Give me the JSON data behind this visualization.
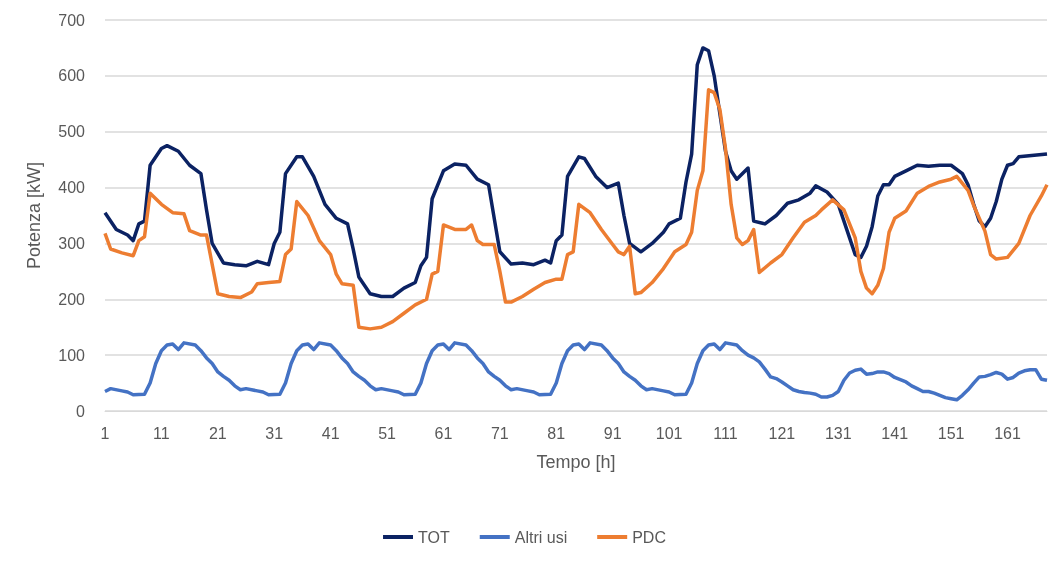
{
  "chart_data": {
    "type": "line",
    "xlabel": "Tempo [h]",
    "ylabel": "Potenza [kW]",
    "xlim": [
      1,
      168
    ],
    "xticks": [
      1,
      11,
      21,
      31,
      41,
      51,
      61,
      71,
      81,
      91,
      101,
      111,
      121,
      131,
      141,
      151,
      161
    ],
    "ylim": [
      0,
      700
    ],
    "yticks": [
      0,
      100,
      200,
      300,
      400,
      500,
      600,
      700
    ],
    "grid": "y",
    "legend": "bottom",
    "series": [
      {
        "name": "TOT",
        "color": "#0b2263",
        "x": [
          1,
          3,
          5,
          6,
          7,
          8,
          9,
          11,
          12,
          14,
          16,
          18,
          19,
          20,
          22,
          24,
          26,
          28,
          30,
          31,
          32,
          33,
          35,
          36,
          38,
          40,
          42,
          44,
          45,
          46,
          48,
          50,
          52,
          54,
          56,
          57,
          58,
          59,
          61,
          63,
          65,
          67,
          69,
          70,
          71,
          73,
          75,
          77,
          79,
          80,
          81,
          82,
          83,
          85,
          86,
          88,
          90,
          92,
          93,
          94,
          96,
          98,
          100,
          101,
          103,
          104,
          105,
          106,
          107,
          108,
          109,
          111,
          112,
          113,
          115,
          116,
          118,
          120,
          122,
          124,
          126,
          127,
          129,
          131,
          132,
          133,
          134,
          135,
          136,
          137,
          138,
          139,
          140,
          141,
          143,
          145,
          147,
          149,
          151,
          153,
          154,
          155,
          156,
          157,
          158,
          159,
          160,
          161,
          162,
          163,
          168
        ],
        "values": [
          355,
          325,
          315,
          305,
          335,
          340,
          440,
          470,
          475,
          465,
          440,
          425,
          360,
          300,
          265,
          262,
          260,
          268,
          262,
          300,
          320,
          425,
          455,
          455,
          420,
          370,
          345,
          335,
          290,
          240,
          210,
          205,
          205,
          220,
          230,
          260,
          275,
          380,
          430,
          442,
          440,
          415,
          405,
          345,
          285,
          263,
          265,
          262,
          270,
          265,
          305,
          315,
          420,
          455,
          452,
          420,
          400,
          408,
          350,
          300,
          285,
          300,
          320,
          335,
          345,
          410,
          460,
          620,
          650,
          645,
          600,
          465,
          430,
          415,
          435,
          340,
          335,
          350,
          372,
          378,
          390,
          403,
          392,
          370,
          340,
          310,
          280,
          275,
          295,
          330,
          385,
          405,
          405,
          420,
          430,
          440,
          438,
          440,
          440,
          425,
          405,
          370,
          340,
          330,
          345,
          375,
          415,
          440,
          443,
          455,
          460
        ]
      },
      {
        "name": "Altri usi",
        "color": "#4472c4",
        "x": [
          1,
          2,
          4,
          5,
          6,
          8,
          9,
          10,
          11,
          12,
          13,
          14,
          15,
          17,
          18,
          19,
          20,
          21,
          22,
          23,
          24,
          25,
          26,
          28,
          29,
          30,
          32,
          33,
          34,
          35,
          36,
          37,
          38,
          39,
          41,
          42,
          43,
          44,
          45,
          46,
          47,
          48,
          49,
          50,
          52,
          53,
          54,
          56,
          57,
          58,
          59,
          60,
          61,
          62,
          63,
          65,
          66,
          67,
          68,
          69,
          70,
          71,
          72,
          73,
          74,
          76,
          77,
          78,
          80,
          81,
          82,
          83,
          84,
          85,
          86,
          87,
          89,
          90,
          91,
          92,
          93,
          94,
          95,
          96,
          97,
          98,
          100,
          101,
          102,
          104,
          105,
          106,
          107,
          108,
          109,
          110,
          111,
          113,
          114,
          115,
          116,
          117,
          118,
          119,
          120,
          121,
          122,
          123,
          124,
          125,
          126,
          127,
          128,
          129,
          130,
          131,
          132,
          133,
          134,
          135,
          136,
          137,
          138,
          139,
          140,
          141,
          142,
          143,
          144,
          145,
          146,
          147,
          148,
          149,
          150,
          151,
          152,
          153,
          154,
          155,
          156,
          157,
          158,
          159,
          160,
          161,
          162,
          163,
          164,
          165,
          166,
          167,
          168
        ],
        "values": [
          35,
          40,
          36,
          34,
          29,
          30,
          50,
          85,
          108,
          118,
          120,
          110,
          122,
          118,
          108,
          95,
          85,
          70,
          62,
          55,
          45,
          38,
          40,
          36,
          34,
          29,
          30,
          50,
          85,
          108,
          118,
          120,
          110,
          122,
          118,
          108,
          95,
          85,
          70,
          62,
          55,
          45,
          38,
          40,
          36,
          34,
          29,
          30,
          50,
          85,
          108,
          118,
          120,
          110,
          122,
          118,
          108,
          95,
          85,
          70,
          62,
          55,
          45,
          38,
          40,
          36,
          34,
          29,
          30,
          50,
          85,
          108,
          118,
          120,
          110,
          122,
          118,
          108,
          95,
          85,
          70,
          62,
          55,
          45,
          38,
          40,
          36,
          34,
          29,
          30,
          50,
          85,
          108,
          118,
          120,
          110,
          122,
          118,
          108,
          100,
          95,
          88,
          75,
          61,
          58,
          52,
          45,
          38,
          35,
          33,
          32,
          30,
          25,
          25,
          28,
          35,
          55,
          68,
          73,
          75,
          66,
          67,
          70,
          70,
          67,
          60,
          56,
          52,
          45,
          40,
          35,
          35,
          32,
          28,
          24,
          22,
          20,
          28,
          38,
          50,
          61,
          62,
          65,
          69,
          66,
          57,
          60,
          68,
          72,
          74,
          74,
          57,
          55
        ]
      },
      {
        "name": "PDC",
        "color": "#ed7d31",
        "x": [
          1,
          2,
          4,
          6,
          7,
          8,
          9,
          11,
          13,
          15,
          16,
          18,
          19,
          21,
          23,
          25,
          27,
          28,
          30,
          32,
          33,
          34,
          35,
          37,
          39,
          41,
          42,
          43,
          45,
          46,
          48,
          50,
          52,
          54,
          56,
          58,
          59,
          60,
          61,
          63,
          65,
          66,
          67,
          68,
          70,
          71,
          72,
          73,
          75,
          77,
          79,
          81,
          82,
          83,
          84,
          85,
          87,
          89,
          91,
          92,
          93,
          94,
          95,
          96,
          98,
          100,
          102,
          104,
          105,
          106,
          107,
          108,
          109,
          110,
          111,
          112,
          113,
          114,
          115,
          116,
          117,
          119,
          121,
          123,
          125,
          127,
          128,
          130,
          132,
          134,
          135,
          136,
          137,
          138,
          139,
          140,
          141,
          143,
          145,
          147,
          149,
          151,
          152,
          154,
          155,
          157,
          158,
          159,
          161,
          163,
          165,
          167,
          168
        ],
        "values": [
          318,
          290,
          283,
          278,
          305,
          312,
          390,
          370,
          355,
          353,
          323,
          315,
          315,
          210,
          205,
          203,
          213,
          228,
          230,
          232,
          280,
          290,
          375,
          350,
          305,
          280,
          245,
          228,
          225,
          150,
          147,
          150,
          160,
          175,
          190,
          200,
          245,
          250,
          333,
          325,
          325,
          333,
          305,
          298,
          298,
          250,
          195,
          195,
          205,
          218,
          230,
          236,
          236,
          280,
          285,
          370,
          355,
          325,
          298,
          285,
          280,
          295,
          210,
          212,
          230,
          255,
          285,
          298,
          320,
          395,
          430,
          575,
          570,
          540,
          470,
          370,
          310,
          298,
          305,
          325,
          248,
          265,
          280,
          310,
          338,
          350,
          360,
          378,
          360,
          310,
          250,
          220,
          210,
          225,
          255,
          320,
          345,
          358,
          390,
          402,
          410,
          415,
          420,
          395,
          368,
          322,
          280,
          272,
          275,
          300,
          350,
          385,
          405
        ]
      }
    ]
  }
}
